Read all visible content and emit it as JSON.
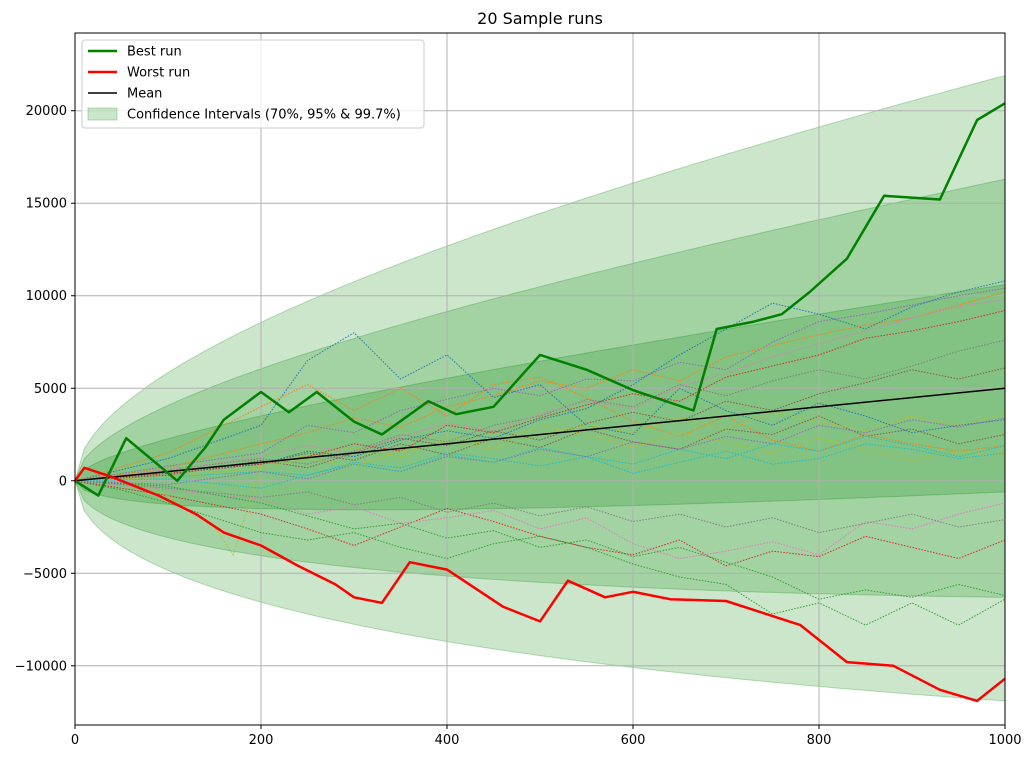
{
  "chart_data": {
    "type": "line",
    "title": "20 Sample runs",
    "xlabel": "",
    "ylabel": "",
    "xlim": [
      0,
      1000
    ],
    "ylim": [
      -13200,
      24200
    ],
    "grid": true,
    "legend_placement": "upper-left",
    "x_ticks": [
      0,
      200,
      400,
      600,
      800,
      1000
    ],
    "x_tick_labels": [
      "0",
      "200",
      "400",
      "600",
      "800",
      "1000"
    ],
    "y_ticks": [
      -10000,
      -5000,
      0,
      5000,
      10000,
      15000,
      20000
    ],
    "y_tick_labels": [
      "−10000",
      "−5000",
      "0",
      "5000",
      "10000",
      "15000",
      "20000"
    ],
    "legend": [
      {
        "key": "best",
        "label": "Best run",
        "color": "#008000"
      },
      {
        "key": "worst",
        "label": "Worst run",
        "color": "#ff0000"
      },
      {
        "key": "mean",
        "label": "Mean",
        "color": "#000000"
      },
      {
        "key": "ci",
        "label": "Confidence Intervals (70%, 95% & 99.7%)",
        "color": "#008000"
      }
    ],
    "mean": {
      "x": [
        0,
        1000
      ],
      "y": [
        0,
        5000
      ]
    },
    "confidence_bands": [
      {
        "level": "99.7%",
        "sigma_at_1000": 16900
      },
      {
        "level": "95%",
        "sigma_at_1000": 11300
      },
      {
        "level": "70%",
        "sigma_at_1000": 5600
      }
    ],
    "best_run": {
      "x": [
        0,
        25,
        55,
        110,
        140,
        160,
        200,
        230,
        260,
        300,
        330,
        380,
        410,
        450,
        500,
        550,
        600,
        665,
        690,
        730,
        760,
        790,
        830,
        870,
        930,
        970,
        1000
      ],
      "y": [
        0,
        -800,
        2300,
        0,
        1800,
        3300,
        4800,
        3700,
        4800,
        3200,
        2500,
        4300,
        3600,
        4000,
        6800,
        6000,
        4900,
        3800,
        8200,
        8600,
        9000,
        10200,
        12000,
        15400,
        15200,
        19500,
        20400
      ]
    },
    "worst_run": {
      "x": [
        0,
        10,
        40,
        90,
        130,
        160,
        200,
        240,
        280,
        300,
        330,
        360,
        400,
        430,
        460,
        500,
        530,
        570,
        600,
        640,
        700,
        780,
        830,
        880,
        930,
        970,
        1000
      ],
      "y": [
        0,
        700,
        200,
        -800,
        -1800,
        -2800,
        -3500,
        -4600,
        -5600,
        -6300,
        -6600,
        -4400,
        -4800,
        -5800,
        -6800,
        -7600,
        -5400,
        -6300,
        -6000,
        -6400,
        -6500,
        -7800,
        -9800,
        -10000,
        -11300,
        -11900,
        -10700
      ]
    },
    "sample_runs": [
      {
        "color": "#1f77b4",
        "x": [
          0,
          100,
          200,
          250,
          300,
          350,
          400,
          450,
          500,
          550,
          600,
          650,
          700,
          750,
          800,
          850,
          900,
          950,
          1000
        ],
        "y": [
          0,
          1200,
          3000,
          6500,
          8000,
          5500,
          6800,
          4500,
          5200,
          3000,
          2500,
          5000,
          3800,
          3000,
          4200,
          3500,
          2600,
          3000,
          3300
        ]
      },
      {
        "color": "#ff7f0e",
        "x": [
          0,
          100,
          200,
          250,
          300,
          350,
          400,
          450,
          500,
          550,
          600,
          650,
          700,
          750,
          800,
          850,
          900,
          950,
          1000
        ],
        "y": [
          0,
          1500,
          4000,
          5200,
          3800,
          5000,
          3500,
          5200,
          5600,
          4500,
          3200,
          2400,
          3500,
          2200,
          1600,
          2500,
          2000,
          1600,
          1900
        ]
      },
      {
        "color": "#2ca02c",
        "x": [
          0,
          50,
          100,
          150,
          200,
          250,
          300,
          350,
          400,
          450,
          500,
          550,
          600,
          650,
          700,
          750,
          800,
          850,
          900,
          950,
          1000
        ],
        "y": [
          0,
          -500,
          -1200,
          -2000,
          -2800,
          -3200,
          -2800,
          -3600,
          -4200,
          -3400,
          -3000,
          -3600,
          -4500,
          -5200,
          -5600,
          -7200,
          -6600,
          -7800,
          -6600,
          -7800,
          -6400
        ]
      },
      {
        "color": "#d62728",
        "x": [
          0,
          100,
          200,
          250,
          300,
          350,
          400,
          450,
          500,
          550,
          600,
          650,
          700,
          750,
          800,
          850,
          900,
          950,
          1000
        ],
        "y": [
          0,
          -800,
          -1800,
          -2600,
          -3500,
          -2500,
          -1500,
          -2200,
          -3000,
          -3600,
          -4000,
          -3200,
          -4600,
          -3800,
          -4100,
          -3000,
          -3600,
          -4200,
          -3200
        ]
      },
      {
        "color": "#9467bd",
        "x": [
          0,
          100,
          200,
          250,
          300,
          350,
          400,
          450,
          500,
          550,
          600,
          650,
          700,
          750,
          800,
          850,
          900,
          950,
          1000
        ],
        "y": [
          0,
          800,
          1500,
          3000,
          2600,
          3800,
          4400,
          5000,
          4600,
          5500,
          5400,
          6400,
          6000,
          7500,
          8600,
          9000,
          9500,
          10000,
          10400
        ]
      },
      {
        "color": "#8c564b",
        "x": [
          0,
          100,
          200,
          250,
          300,
          350,
          400,
          450,
          500,
          550,
          600,
          650,
          700,
          750,
          800,
          850,
          900,
          950,
          1000
        ],
        "y": [
          0,
          400,
          900,
          1500,
          1100,
          2000,
          1400,
          2300,
          1800,
          2800,
          2100,
          1700,
          2800,
          2500,
          3500,
          2400,
          2800,
          2000,
          2500
        ]
      },
      {
        "color": "#e377c2",
        "x": [
          0,
          100,
          200,
          250,
          300,
          350,
          400,
          450,
          500,
          550,
          600,
          650,
          700,
          750,
          800,
          850,
          900,
          950,
          1000
        ],
        "y": [
          0,
          -500,
          -1000,
          -1800,
          -1400,
          -2300,
          -2000,
          -1600,
          -2600,
          -2000,
          -3400,
          -4200,
          -3800,
          -3300,
          -4000,
          -2200,
          -2600,
          -1800,
          -1200
        ]
      },
      {
        "color": "#7f7f7f",
        "x": [
          0,
          100,
          200,
          250,
          300,
          350,
          400,
          450,
          500,
          550,
          600,
          650,
          700,
          750,
          800,
          850,
          900,
          950,
          1000
        ],
        "y": [
          0,
          600,
          1200,
          900,
          1600,
          2500,
          2100,
          3000,
          3500,
          4400,
          4000,
          5200,
          4600,
          5400,
          6000,
          5500,
          6200,
          7000,
          7600
        ]
      },
      {
        "color": "#bcbd22",
        "x": [
          0,
          50,
          100,
          150,
          170,
          200,
          300,
          350,
          400,
          450,
          500,
          550,
          600,
          650,
          700,
          750,
          800,
          850,
          900,
          950,
          1000
        ],
        "y": [
          0,
          300,
          -800,
          -2500,
          -4000,
          900,
          1800,
          1300,
          2400,
          1900,
          3000,
          2500,
          1800,
          2600,
          2100,
          1500,
          2300,
          1700,
          1100,
          1600,
          1400
        ]
      },
      {
        "color": "#17becf",
        "x": [
          0,
          100,
          200,
          250,
          300,
          350,
          400,
          450,
          500,
          550,
          600,
          650,
          700,
          750,
          800,
          850,
          900,
          950,
          1000
        ],
        "y": [
          0,
          200,
          500,
          300,
          1000,
          700,
          1500,
          1200,
          800,
          1300,
          400,
          1000,
          1600,
          900,
          1200,
          2000,
          1700,
          1200,
          1500
        ]
      },
      {
        "color": "#1f77b4",
        "x": [
          0,
          100,
          200,
          250,
          300,
          350,
          400,
          450,
          500,
          550,
          600,
          650,
          700,
          750,
          800,
          850,
          900,
          950,
          1000
        ],
        "y": [
          0,
          500,
          900,
          1600,
          1300,
          2200,
          2700,
          2300,
          3300,
          3900,
          5200,
          6800,
          8200,
          9600,
          9000,
          8200,
          9400,
          10200,
          10800
        ]
      },
      {
        "color": "#ff7f0e",
        "x": [
          0,
          100,
          200,
          250,
          300,
          350,
          400,
          450,
          500,
          550,
          600,
          650,
          700,
          750,
          800,
          850,
          900,
          950,
          1000
        ],
        "y": [
          0,
          700,
          2000,
          2600,
          3400,
          2900,
          4000,
          4600,
          5400,
          5000,
          6000,
          5400,
          6700,
          7300,
          7900,
          8400,
          8800,
          9500,
          10200
        ]
      },
      {
        "color": "#2ca02c",
        "x": [
          0,
          100,
          200,
          250,
          300,
          350,
          400,
          450,
          500,
          550,
          600,
          650,
          700,
          750,
          800,
          850,
          900,
          950,
          1000
        ],
        "y": [
          0,
          -300,
          -1200,
          -1900,
          -2600,
          -2300,
          -3100,
          -2700,
          -3600,
          -3200,
          -4100,
          -3600,
          -4400,
          -5200,
          -6400,
          -5900,
          -6300,
          -5600,
          -6200
        ]
      },
      {
        "color": "#d62728",
        "x": [
          0,
          100,
          200,
          250,
          300,
          350,
          400,
          450,
          500,
          550,
          600,
          650,
          700,
          750,
          800,
          850,
          900,
          950,
          1000
        ],
        "y": [
          0,
          400,
          900,
          1300,
          2000,
          1600,
          3000,
          2600,
          3400,
          4100,
          4700,
          4300,
          5600,
          6200,
          6800,
          7700,
          8100,
          8600,
          9200
        ]
      },
      {
        "color": "#9467bd",
        "x": [
          0,
          100,
          200,
          250,
          300,
          350,
          400,
          450,
          500,
          550,
          600,
          650,
          700,
          750,
          800,
          850,
          900,
          950,
          1000
        ],
        "y": [
          0,
          -200,
          500,
          100,
          900,
          500,
          1300,
          1000,
          1700,
          1300,
          2100,
          1700,
          2400,
          2000,
          3000,
          2600,
          3300,
          2900,
          3400
        ]
      },
      {
        "color": "#8c564b",
        "x": [
          0,
          100,
          200,
          250,
          300,
          350,
          400,
          450,
          500,
          550,
          600,
          650,
          700,
          750,
          800,
          850,
          900,
          950,
          1000
        ],
        "y": [
          0,
          300,
          1100,
          700,
          1500,
          2300,
          1900,
          2700,
          2200,
          3100,
          3700,
          3200,
          4300,
          3800,
          4700,
          5300,
          6000,
          5500,
          6100
        ]
      },
      {
        "color": "#e377c2",
        "x": [
          0,
          100,
          200,
          250,
          300,
          350,
          400,
          450,
          500,
          550,
          600,
          650,
          700,
          750,
          800,
          850,
          900,
          950,
          1000
        ],
        "y": [
          0,
          600,
          1300,
          1900,
          1500,
          2400,
          3100,
          2700,
          3600,
          4300,
          3900,
          5100,
          5800,
          6700,
          7400,
          8100,
          8800,
          9400,
          9800
        ]
      },
      {
        "color": "#7f7f7f",
        "x": [
          0,
          100,
          200,
          250,
          300,
          350,
          400,
          450,
          500,
          550,
          600,
          650,
          700,
          750,
          800,
          850,
          900,
          950,
          1000
        ],
        "y": [
          0,
          -400,
          -900,
          -600,
          -1300,
          -900,
          -1700,
          -1200,
          -1900,
          -1400,
          -2200,
          -1800,
          -2500,
          -2000,
          -2800,
          -2300,
          -1800,
          -2500,
          -2100
        ]
      },
      {
        "color": "#bcbd22",
        "x": [
          0,
          100,
          200,
          250,
          300,
          350,
          400,
          450,
          500,
          550,
          600,
          650,
          700,
          750,
          800,
          850,
          900,
          950,
          1000
        ],
        "y": [
          0,
          200,
          700,
          1200,
          800,
          1600,
          2100,
          1700,
          2500,
          3000,
          2600,
          3400,
          2800,
          3700,
          3200,
          2700,
          3500,
          3000,
          3600
        ]
      },
      {
        "color": "#17becf",
        "x": [
          0,
          100,
          200,
          250,
          300,
          350,
          400,
          450,
          500,
          550,
          600,
          650,
          700,
          750,
          800,
          850,
          900,
          950,
          1000
        ],
        "y": [
          0,
          100,
          -400,
          300,
          900,
          500,
          1400,
          1000,
          1800,
          1300,
          900,
          1700,
          1200,
          2000,
          1600,
          2400,
          1900,
          1300,
          1900
        ]
      }
    ]
  }
}
